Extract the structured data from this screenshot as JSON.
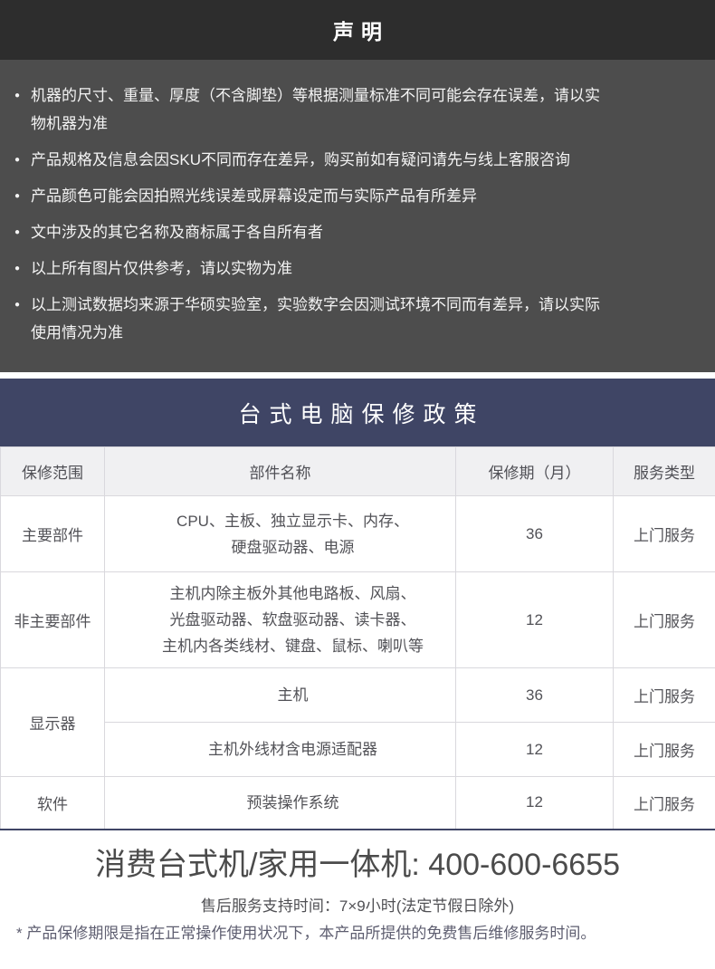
{
  "colors": {
    "declaration_header_bg": "#2d2d2d",
    "declaration_body_bg": "#4d4d4d",
    "policy_header_bg": "#3f4565",
    "table_header_bg": "#f0f0f2",
    "table_border": "#d9d8dd",
    "table_bottom_border": "#3f4565",
    "text_light": "#f4f4f4",
    "text_dark": "#525257"
  },
  "disclaimer": {
    "title": "声明",
    "bullet_icon": "●",
    "items": [
      "机器的尺寸、重量、厚度（不含脚垫）等根据测量标准不同可能会存在误差，请以实\n物机器为准",
      "产品规格及信息会因SKU不同而存在差异，购买前如有疑问请先与线上客服咨询",
      "产品颜色可能会因拍照光线误差或屏幕设定而与实际产品有所差异",
      "文中涉及的其它名称及商标属于各自所有者",
      "以上所有图片仅供参考，请以实物为准",
      "以上测试数据均来源于华硕实验室，实验数字会因测试环境不同而有差异，请以实际\n使用情况为准"
    ]
  },
  "warranty": {
    "title": "台式电脑保修政策",
    "table": {
      "headers": [
        "保修范围",
        "部件名称",
        "保修期（月）",
        "服务类型"
      ],
      "rows": [
        {
          "scope": "主要部件",
          "parts": "CPU、主板、独立显示卡、内存、\n硬盘驱动器、电源",
          "months": "36",
          "service": "上门服务"
        },
        {
          "scope": "非主要部件",
          "parts": "主机内除主板外其他电路板、风扇、\n光盘驱动器、软盘驱动器、读卡器、\n主机内各类线材、键盘、鼠标、喇叭等",
          "months": "12",
          "service": "上门服务"
        },
        {
          "scope": "显示器",
          "parts": "主机",
          "months": "36",
          "service": "上门服务"
        },
        {
          "parts": "主机外线材含电源适配器",
          "months": "12",
          "service": "上门服务"
        },
        {
          "scope": "软件",
          "parts": "预装操作系统",
          "months": "12",
          "service": "上门服务"
        }
      ]
    }
  },
  "footer": {
    "hotline": "消费台式机/家用一体机: 400-600-6655",
    "support_hours": "售后服务支持时间：7×9小时(法定节假日除外)",
    "note": "* 产品保修期限是指在正常操作使用状况下，本产品所提供的免费售后维修服务时间。"
  }
}
